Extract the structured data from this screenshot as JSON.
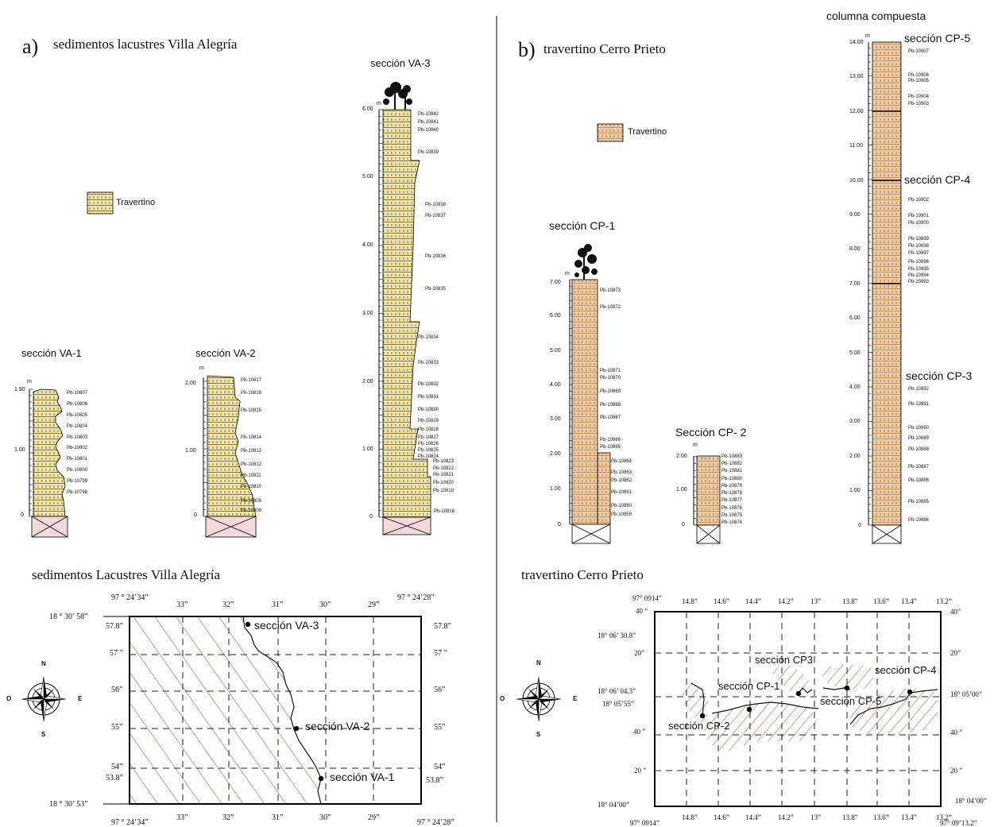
{
  "panel_a": {
    "letter": "a)",
    "title": "sedimentos lacustres Villa Alegría",
    "legend": {
      "label": "Travertino",
      "color": "#f3e6a2"
    },
    "sections": [
      {
        "title": "sección VA-1",
        "unit": "m",
        "top_tick": "1.90",
        "mid_tick": "1.00",
        "zero": "0",
        "samples": [
          "Pb-10807",
          "Pb-10806",
          "Pb-10805",
          "Pb-10804",
          "Pb-10803",
          "Pb-10802",
          "Pb-10801",
          "Pb-10800",
          "Pb-10799",
          "Pb-10798"
        ]
      },
      {
        "title": "sección VA-2",
        "unit": "m",
        "top_tick": "2.00",
        "mid_tick": "1.00",
        "zero": "0",
        "samples": [
          "Pb-10817",
          "Pb-10816",
          "Pb-10815",
          "Pb-10814",
          "Pb-10813",
          "Pb-10812",
          "Pb-10811",
          "Pb-10810",
          "Pb-10809",
          "Pb-10808"
        ]
      },
      {
        "title": "sección VA-3",
        "unit": "m",
        "ticks": [
          "6.00",
          "5.00",
          "4.00",
          "3.00",
          "2.00",
          "1.00",
          "0"
        ],
        "samples": [
          "Pb-10842",
          "Pb-10841",
          "Pb-10840",
          "Pb-10839",
          "Pb-10838",
          "Pb-10837",
          "Pb-10836",
          "Pb-10835",
          "Pb-10834",
          "Pb-10833",
          "Pb-10832",
          "Pb-10831",
          "Pb-10830",
          "Pb-10829",
          "Pb-10828",
          "Pb-10827",
          "Pb-10826",
          "Pb-10825",
          "Pb-10824",
          "Pb-10823",
          "Pb-10822",
          "Pb-10821",
          "Pb-10820",
          "Pb-10819",
          "Pb-10818"
        ]
      }
    ],
    "map": {
      "title": "sedimentos Lacustres Villa Alegría",
      "corner_tl": "97 ° 24’34”",
      "corner_tr": "97 ° 24’28”",
      "corner_bl": "97 ° 24’34”",
      "corner_br": "97 ° 24’28”",
      "top_lat": "18 ° 30’ 58”",
      "bottom_lat": "18 ° 30’ 53”",
      "lon_ticks": [
        "33”",
        "32”",
        "31”",
        "30”",
        "29”"
      ],
      "lat_ticks": [
        "57.8”",
        "57 ”",
        "56”",
        "55”",
        "54”",
        "53.8”"
      ],
      "points": [
        "sección VA-3",
        "sección VA-2",
        "sección VA-1"
      ],
      "compass": [
        "N",
        "S",
        "E",
        "O"
      ]
    }
  },
  "panel_b": {
    "letter": "b)",
    "title": "travertino Cerro Prieto",
    "legend": {
      "label": "Travertino",
      "color": "#f3c99a"
    },
    "cp1": {
      "title": "sección CP-1",
      "unit": "m",
      "ticks": [
        "7.00",
        "6.00",
        "5.00",
        "4.00",
        "3.00",
        "2.00",
        "1.00",
        "0"
      ],
      "samples": [
        "Pb-10873",
        "Pb-10872",
        "Pb-10871",
        "Pb-10870",
        "Pb-10869",
        "Pb-10868",
        "Pb-10867",
        "Pb-10866",
        "Pb-10865",
        "Pb-10864",
        "Pb-10863",
        "Pb-10862",
        "Pb-10861",
        "Pb-10860",
        "Pb-10859"
      ]
    },
    "cp2": {
      "title": "Sección CP- 2",
      "unit": "m",
      "ticks": [
        "2.00",
        "1.00",
        "0"
      ],
      "samples": [
        "Pb-10883",
        "Pb-10882",
        "Pb-10881",
        "Pb-10880",
        "Pb-10879",
        "Pb-10878",
        "Pb-10877",
        "Pb-10876",
        "Pb-10875",
        "Pb-10874"
      ]
    },
    "composite": {
      "title": "columna compuesta",
      "unit": "m",
      "ticks": [
        "14.00",
        "13.00",
        "12.00",
        "11.00",
        "10.00",
        "9.00",
        "8.00",
        "7.00",
        "6.00",
        "5.00",
        "4.00",
        "3.00",
        "2.00",
        "1.00",
        "0"
      ],
      "section_labels": [
        "sección CP-5",
        "sección  CP-4",
        "sección CP-3"
      ],
      "samples": [
        "Pb-10907",
        "Pb-10906",
        "Pb-10905",
        "Pb-10904",
        "Pb-10903",
        "Pb-10902",
        "Pb-10901",
        "Pb-10900",
        "Pb-10899",
        "Pb-10898",
        "Pb-10897",
        "Pb-10896",
        "Pb-10895",
        "Pb-10894",
        "Pb-10893",
        "Pb-10892",
        "Pb-10891",
        "Pb-10890",
        "Pb-10889",
        "Pb-10888",
        "Pb-10887",
        "Pb-10886",
        "Pb-10885",
        "Pb-10884"
      ]
    },
    "map": {
      "title": "travertino Cerro Prieto",
      "corner_tl": "97° 0914”",
      "corner_bl": "97° 0914”",
      "corner_br": "97° 09’13.2”",
      "lon_ticks": [
        "14.8”",
        "14.6”",
        "14.4”",
        "14.2”",
        "13”",
        "13.8”",
        "13.6”",
        "13.4”",
        "13.2”"
      ],
      "lat_left": [
        "40 “",
        "18° 06’ 30.8”",
        "20”",
        "18° 06’ 04.3”",
        "18° 05’55”",
        "40 ”",
        "20 ”",
        "18° 04’00”"
      ],
      "lat_right": [
        "40”",
        "20”",
        "18° 05’00”",
        "40 ”",
        "20 ”",
        "18° 04’00”"
      ],
      "points": [
        "sección CP3",
        "sección CP-1",
        "sección CP-4",
        "sección CP-5",
        "sección CP-2"
      ],
      "compass": [
        "N",
        "S",
        "E",
        "O"
      ]
    }
  }
}
